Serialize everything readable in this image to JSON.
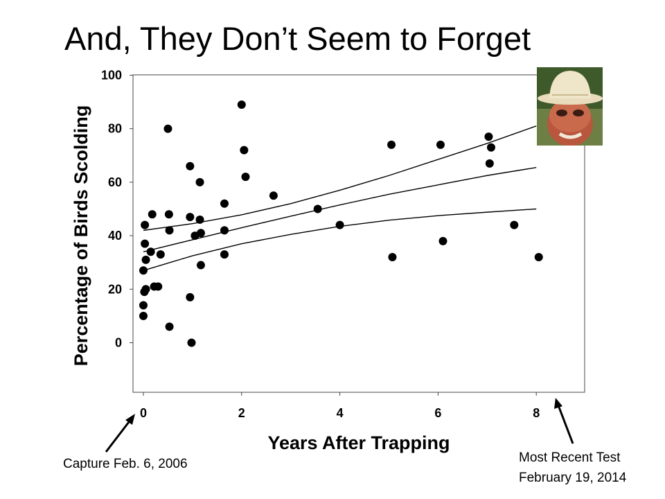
{
  "slide": {
    "title": "And, They Don’t Seem to Forget",
    "annotations": {
      "capture": "Capture Feb. 6, 2006",
      "recent_line1": "Most Recent Test",
      "recent_line2": "February 19, 2014"
    },
    "image_icon": "man-in-pith-helmet-mask-photo"
  },
  "chart_data": {
    "type": "scatter",
    "title": "",
    "xlabel": "Years After Trapping",
    "ylabel": "Percentage of Birds Scolding",
    "xlim": [
      -0.2,
      9.0
    ],
    "ylim": [
      -18,
      102
    ],
    "xticks": [
      0,
      2,
      4,
      6,
      8
    ],
    "yticks": [
      0,
      20,
      40,
      60,
      80,
      100
    ],
    "grid": false,
    "legend": "none",
    "marker_color": "#000000",
    "points": [
      {
        "x": 0.0,
        "y": 10
      },
      {
        "x": 0.0,
        "y": 14
      },
      {
        "x": 0.02,
        "y": 19
      },
      {
        "x": 0.05,
        "y": 20
      },
      {
        "x": 0.0,
        "y": 27
      },
      {
        "x": 0.05,
        "y": 31
      },
      {
        "x": 0.03,
        "y": 37
      },
      {
        "x": 0.15,
        "y": 34
      },
      {
        "x": 0.03,
        "y": 44
      },
      {
        "x": 0.18,
        "y": 48
      },
      {
        "x": 0.22,
        "y": 21
      },
      {
        "x": 0.3,
        "y": 21
      },
      {
        "x": 0.35,
        "y": 33
      },
      {
        "x": 0.5,
        "y": 80
      },
      {
        "x": 0.52,
        "y": 48
      },
      {
        "x": 0.53,
        "y": 42
      },
      {
        "x": 0.53,
        "y": 6
      },
      {
        "x": 0.95,
        "y": 66
      },
      {
        "x": 0.95,
        "y": 47
      },
      {
        "x": 0.95,
        "y": 17
      },
      {
        "x": 0.98,
        "y": 0
      },
      {
        "x": 1.05,
        "y": 40
      },
      {
        "x": 1.15,
        "y": 60
      },
      {
        "x": 1.15,
        "y": 46
      },
      {
        "x": 1.17,
        "y": 41
      },
      {
        "x": 1.17,
        "y": 29
      },
      {
        "x": 1.65,
        "y": 52
      },
      {
        "x": 1.65,
        "y": 42
      },
      {
        "x": 1.65,
        "y": 33
      },
      {
        "x": 2.0,
        "y": 89
      },
      {
        "x": 2.05,
        "y": 72
      },
      {
        "x": 2.08,
        "y": 62
      },
      {
        "x": 2.65,
        "y": 55
      },
      {
        "x": 3.55,
        "y": 50
      },
      {
        "x": 4.0,
        "y": 44
      },
      {
        "x": 5.05,
        "y": 74
      },
      {
        "x": 5.07,
        "y": 32
      },
      {
        "x": 6.05,
        "y": 74
      },
      {
        "x": 6.1,
        "y": 38
      },
      {
        "x": 7.03,
        "y": 77
      },
      {
        "x": 7.08,
        "y": 73
      },
      {
        "x": 7.05,
        "y": 67
      },
      {
        "x": 7.55,
        "y": 44
      },
      {
        "x": 8.05,
        "y": 32
      }
    ],
    "fit_lines": [
      {
        "name": "",
        "x": [
          0,
          1,
          2,
          3,
          4,
          5,
          6,
          7,
          8
        ],
        "y": [
          42,
          44.5,
          47.8,
          52,
          57,
          62.5,
          68.5,
          74.5,
          81
        ]
      },
      {
        "name": "",
        "x": [
          0,
          1,
          2,
          3,
          4,
          5,
          6,
          7,
          8
        ],
        "y": [
          34,
          38.5,
          43,
          47.3,
          51.5,
          55.5,
          59,
          62.5,
          65.5
        ]
      },
      {
        "name": "",
        "x": [
          0,
          1,
          2,
          3,
          4,
          5,
          6,
          7,
          8
        ],
        "y": [
          27,
          32.5,
          37,
          40.5,
          43.5,
          45.8,
          47.5,
          48.8,
          50
        ]
      }
    ]
  }
}
